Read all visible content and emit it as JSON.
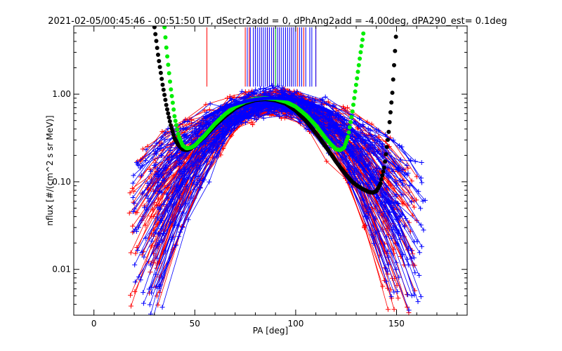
{
  "chart_data": {
    "type": "line",
    "title": "2021-02-05/00:45:46 - 00:51:50 UT, dSectr2add = 0, dPhAng2add = -4.00deg, dPA290_est=   0.1deg",
    "xlabel": "PA [deg]",
    "ylabel": "nflux [#/(cm^2 s sr MeV)]",
    "xlim": [
      -10,
      185
    ],
    "ylim": [
      0.003,
      6.0
    ],
    "yscale": "log",
    "grid": false,
    "legend": "none",
    "xticks": [
      {
        "value": 0,
        "label": "0"
      },
      {
        "value": 50,
        "label": "50"
      },
      {
        "value": 100,
        "label": "100"
      },
      {
        "value": 150,
        "label": "150"
      }
    ],
    "yticks": [
      {
        "value": 0.01,
        "label": "0.01"
      },
      {
        "value": 0.1,
        "label": "0.10"
      },
      {
        "value": 1.0,
        "label": "1.00"
      }
    ],
    "series": [
      {
        "kind": "measured-flux",
        "color": "#ff0000",
        "marker": "plus",
        "count": 75,
        "peak_pa": 91,
        "peak_flux": 0.93,
        "low_pa": 18,
        "high_pa": 160,
        "min_flux": 0.004
      },
      {
        "kind": "measured-flux",
        "color": "#0000ff",
        "marker": "plus",
        "count": 75,
        "peak_pa": 89,
        "peak_flux": 0.9,
        "low_pa": 20,
        "high_pa": 163,
        "min_flux": 0.0035
      },
      {
        "kind": "fit-curve",
        "color": "#000000",
        "marker": "dot",
        "x": [
          30,
          32,
          34,
          36,
          38,
          40,
          42,
          44,
          46,
          48,
          50,
          55,
          60,
          65,
          70,
          75,
          80,
          85,
          90,
          95,
          100,
          105,
          110,
          115,
          120,
          125,
          128,
          130,
          133,
          136,
          138,
          140,
          142,
          144,
          146,
          148,
          150
        ],
        "y": [
          5.8,
          2.6,
          1.3,
          0.72,
          0.45,
          0.31,
          0.26,
          0.235,
          0.23,
          0.24,
          0.26,
          0.33,
          0.44,
          0.56,
          0.69,
          0.79,
          0.86,
          0.88,
          0.85,
          0.78,
          0.65,
          0.5,
          0.36,
          0.25,
          0.17,
          0.12,
          0.1,
          0.092,
          0.083,
          0.077,
          0.075,
          0.078,
          0.095,
          0.15,
          0.35,
          1.1,
          5.8
        ]
      },
      {
        "kind": "fit-curve",
        "color": "#00ee00",
        "marker": "dot",
        "x": [
          35,
          36,
          38,
          40,
          42,
          44,
          46,
          48,
          50,
          55,
          60,
          65,
          70,
          75,
          80,
          85,
          90,
          95,
          100,
          105,
          110,
          115,
          118,
          120,
          122,
          124,
          126,
          128,
          130,
          132,
          134
        ],
        "y": [
          5.8,
          3.2,
          1.2,
          0.55,
          0.33,
          0.26,
          0.24,
          0.245,
          0.26,
          0.34,
          0.46,
          0.59,
          0.72,
          0.82,
          0.88,
          0.9,
          0.88,
          0.82,
          0.72,
          0.58,
          0.44,
          0.31,
          0.26,
          0.235,
          0.23,
          0.245,
          0.33,
          0.6,
          1.3,
          2.8,
          5.8
        ]
      },
      {
        "kind": "marker-lines",
        "red_x": [
          56,
          75,
          77,
          80,
          83,
          86,
          89,
          92,
          95,
          98,
          101,
          104,
          107,
          110
        ],
        "blue_x": [
          76,
          77.5,
          79,
          80,
          81,
          82,
          83,
          84,
          85,
          86,
          87,
          88,
          89,
          90,
          91,
          92,
          93,
          94,
          95,
          96,
          97,
          98,
          99,
          100,
          102,
          103,
          105,
          107,
          108,
          110
        ],
        "green_x": [
          90
        ]
      }
    ]
  }
}
